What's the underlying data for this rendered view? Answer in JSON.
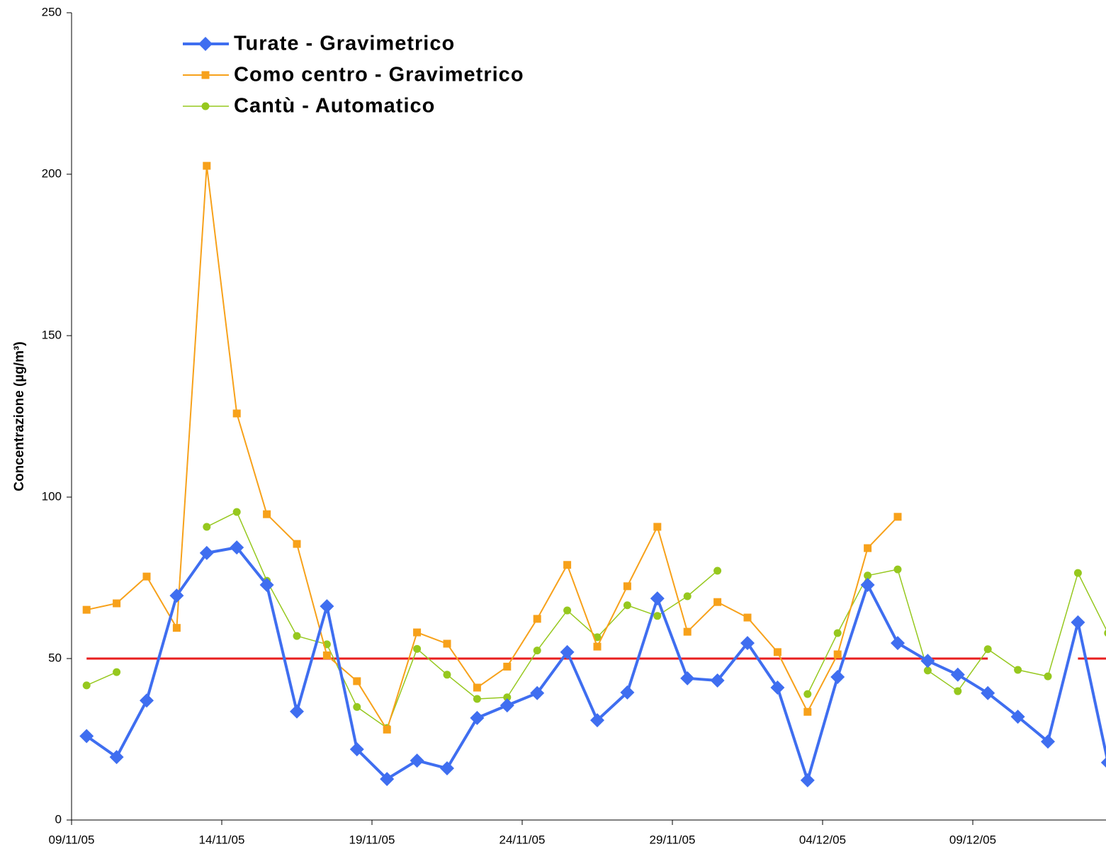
{
  "chart_data": {
    "type": "line",
    "y_label": "Concentrazione (µg/m³)",
    "categories": [
      "09/11/05",
      null,
      null,
      null,
      null,
      "14/11/05",
      null,
      null,
      null,
      null,
      "19/11/05",
      null,
      null,
      null,
      null,
      "24/11/05",
      null,
      null,
      null,
      null,
      "29/11/05",
      null,
      null,
      null,
      null,
      "04/12/05",
      null,
      null,
      null,
      null,
      "09/12/05",
      null,
      null,
      null,
      null
    ],
    "ylim": [
      0,
      250
    ],
    "yticks": [
      0,
      50,
      100,
      150,
      200,
      250
    ],
    "series": [
      {
        "name": "Turate - Gravimetrico",
        "color": "#3f6ef0",
        "marker": "diamond",
        "line_width": 4,
        "values": [
          26,
          19.5,
          37,
          69.5,
          82.7,
          84.4,
          72.8,
          33.6,
          66.2,
          21.9,
          12.7,
          18.4,
          16,
          31.6,
          35.5,
          39.3,
          52,
          30.9,
          39.5,
          68.6,
          43.9,
          43.2,
          54.8,
          41,
          12.3,
          44.3,
          72.8,
          54.8,
          49.3,
          45,
          39.3,
          32,
          24.3,
          61.2,
          17.8
        ]
      },
      {
        "name": "Como centro - Gravimetrico",
        "color": "#f7a11a",
        "marker": "square",
        "line_width": 2,
        "values": [
          65.1,
          67.1,
          75.4,
          59.5,
          202.6,
          125.9,
          94.7,
          85.5,
          51,
          43,
          28,
          58.1,
          54.6,
          41,
          47.5,
          62.3,
          79,
          53.7,
          72.4,
          90.8,
          58.3,
          67.5,
          62.7,
          52,
          33.5,
          51.3,
          84.2,
          93.9,
          null,
          null,
          null,
          null,
          null,
          null,
          null
        ]
      },
      {
        "name": "Cantù - Automatico",
        "color": "#96c81e",
        "marker": "circle",
        "line_width": 1.5,
        "values": [
          41.7,
          45.8,
          null,
          null,
          90.8,
          95.4,
          74.1,
          57,
          54.4,
          35,
          28.5,
          53,
          45,
          37.5,
          38,
          52.5,
          64.9,
          56.6,
          66.5,
          63.2,
          69.3,
          77.2,
          null,
          null,
          39,
          57.9,
          75.7,
          77.6,
          46.3,
          39.9,
          52.9,
          46.5,
          44.5,
          76.5,
          57.9
        ]
      },
      {
        "color": "#e81e1e",
        "marker": null,
        "line_width": 3,
        "values": [
          50,
          50,
          50,
          50,
          50,
          50,
          50,
          50,
          50,
          50,
          50,
          50,
          50,
          50,
          50,
          50,
          50,
          50,
          50,
          50,
          50,
          50,
          50,
          50,
          50,
          50,
          50,
          50,
          50,
          50,
          50,
          null,
          null,
          50,
          50
        ]
      }
    ],
    "legend": "upper left"
  }
}
